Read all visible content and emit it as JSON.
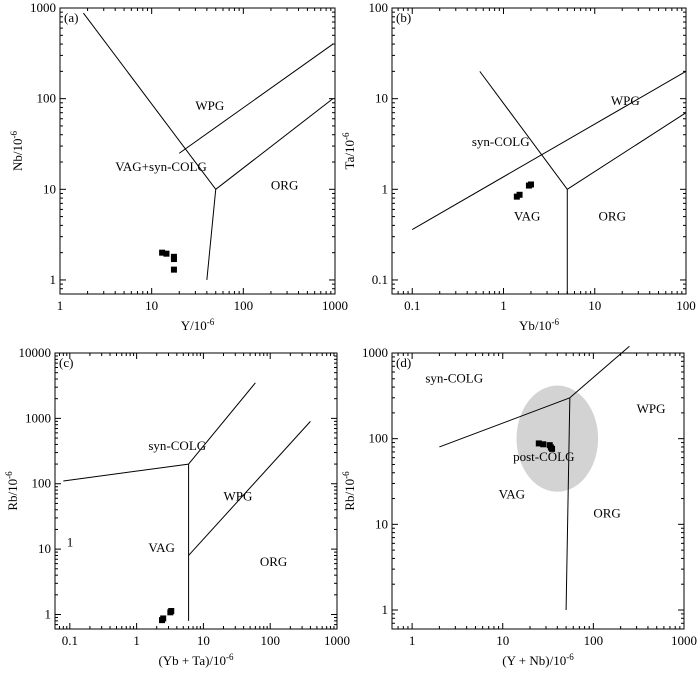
{
  "chart_data": [
    {
      "type": "scatter",
      "panel_label": "(a)",
      "scale": "log-log",
      "xlabel": "Y/10",
      "xlabel_exp": "-6",
      "ylabel": "Nb/10",
      "ylabel_exp": "-6",
      "xlim": [
        1,
        1000
      ],
      "ylim": [
        0.7,
        1000
      ],
      "xticks": [
        {
          "v": 1,
          "t": "1"
        },
        {
          "v": 10,
          "t": "10"
        },
        {
          "v": 100,
          "t": "100"
        },
        {
          "v": 1000,
          "t": "1000"
        }
      ],
      "yticks": [
        {
          "v": 1,
          "t": "1"
        },
        {
          "v": 10,
          "t": "10"
        },
        {
          "v": 100,
          "t": "100"
        },
        {
          "v": 1000,
          "t": "1000"
        }
      ],
      "field_labels": [
        {
          "text": "WPG",
          "x": 30,
          "y": 75
        },
        {
          "text": "VAG+syn-COLG",
          "x": 4,
          "y": 16
        },
        {
          "text": "ORG",
          "x": 200,
          "y": 10
        }
      ],
      "boundaries": [
        [
          [
            1.8,
            880
          ],
          [
            50,
            10
          ]
        ],
        [
          [
            50,
            10
          ],
          [
            40,
            1
          ]
        ],
        [
          [
            20,
            25
          ],
          [
            950,
            400
          ]
        ],
        [
          [
            50,
            10
          ],
          [
            950,
            100
          ]
        ]
      ],
      "points": [
        [
          13,
          2.0
        ],
        [
          14.5,
          1.95
        ],
        [
          17.5,
          1.8
        ],
        [
          17.5,
          1.7
        ],
        [
          17.5,
          1.3
        ]
      ]
    },
    {
      "type": "scatter",
      "panel_label": "(b)",
      "scale": "log-log",
      "xlabel": "Yb/10",
      "xlabel_exp": "-6",
      "ylabel": "Ta/10",
      "ylabel_exp": "-6",
      "xlim": [
        0.06,
        100
      ],
      "ylim": [
        0.07,
        100
      ],
      "xticks": [
        {
          "v": 0.1,
          "t": "0.1"
        },
        {
          "v": 1,
          "t": "1"
        },
        {
          "v": 10,
          "t": "10"
        },
        {
          "v": 100,
          "t": "100"
        }
      ],
      "yticks": [
        {
          "v": 0.1,
          "t": "0.1"
        },
        {
          "v": 1,
          "t": "1"
        },
        {
          "v": 10,
          "t": "10"
        },
        {
          "v": 100,
          "t": "100"
        }
      ],
      "field_labels": [
        {
          "text": "WPG",
          "x": 15,
          "y": 8.5
        },
        {
          "text": "syn-COLG",
          "x": 0.45,
          "y": 3.0
        },
        {
          "text": "VAG",
          "x": 1.3,
          "y": 0.45
        },
        {
          "text": "ORG",
          "x": 11,
          "y": 0.45
        }
      ],
      "boundaries": [
        [
          [
            0.1,
            0.36
          ],
          [
            100,
            20
          ]
        ],
        [
          [
            0.55,
            20
          ],
          [
            5,
            1
          ]
        ],
        [
          [
            5,
            1
          ],
          [
            100,
            7
          ]
        ],
        [
          [
            5,
            1
          ],
          [
            5,
            0.07
          ]
        ]
      ],
      "points": [
        [
          1.4,
          0.83
        ],
        [
          1.5,
          0.87
        ],
        [
          1.9,
          1.1
        ],
        [
          2.0,
          1.13
        ]
      ]
    },
    {
      "type": "scatter",
      "panel_label": "(c)",
      "scale": "log-log",
      "xlabel": "(Yb + Ta)/10",
      "xlabel_exp": "-6",
      "ylabel": "Rb/10",
      "ylabel_exp": "-6",
      "xlim": [
        0.06,
        1000
      ],
      "ylim": [
        0.6,
        10000
      ],
      "xticks": [
        {
          "v": 0.1,
          "t": "0.1"
        },
        {
          "v": 1,
          "t": "1"
        },
        {
          "v": 10,
          "t": "10"
        },
        {
          "v": 100,
          "t": "100"
        },
        {
          "v": 1000,
          "t": "1000"
        }
      ],
      "yticks": [
        {
          "v": 1,
          "t": "1"
        },
        {
          "v": 10,
          "t": "10"
        },
        {
          "v": 100,
          "t": "100"
        },
        {
          "v": 1000,
          "t": "1000"
        },
        {
          "v": 10000,
          "t": "10000"
        }
      ],
      "field_labels": [
        {
          "text": "syn-COLG",
          "x": 1.5,
          "y": 330
        },
        {
          "text": "WPG",
          "x": 20,
          "y": 55
        },
        {
          "text": "VAG",
          "x": 1.5,
          "y": 9
        },
        {
          "text": "ORG",
          "x": 70,
          "y": 5.5
        },
        {
          "text": "1",
          "x": 0.09,
          "y": 11
        }
      ],
      "boundaries": [
        [
          [
            0.08,
            110
          ],
          [
            6,
            200
          ]
        ],
        [
          [
            6,
            200
          ],
          [
            60,
            3500
          ]
        ],
        [
          [
            6,
            200
          ],
          [
            6,
            0.8
          ]
        ],
        [
          [
            6,
            8
          ],
          [
            400,
            900
          ]
        ]
      ],
      "points": [
        [
          2.4,
          0.82
        ],
        [
          2.5,
          0.87
        ],
        [
          3.2,
          1.08
        ],
        [
          3.3,
          1.13
        ]
      ]
    },
    {
      "type": "scatter",
      "panel_label": "(d)",
      "scale": "log-log",
      "xlabel": "(Y + Nb)/10",
      "xlabel_exp": "-6",
      "ylabel": "Rb/10",
      "ylabel_exp": "-6",
      "xlim": [
        0.6,
        1000
      ],
      "ylim": [
        0.6,
        1000
      ],
      "xticks": [
        {
          "v": 1,
          "t": "1"
        },
        {
          "v": 10,
          "t": "10"
        },
        {
          "v": 100,
          "t": "100"
        },
        {
          "v": 1000,
          "t": "1000"
        }
      ],
      "yticks": [
        {
          "v": 1,
          "t": "1"
        },
        {
          "v": 10,
          "t": "10"
        },
        {
          "v": 100,
          "t": "100"
        },
        {
          "v": 1000,
          "t": "1000"
        }
      ],
      "field_labels": [
        {
          "text": "syn-COLG",
          "x": 1.4,
          "y": 450
        },
        {
          "text": "WPG",
          "x": 300,
          "y": 200
        },
        {
          "text": "post-COLG",
          "x": 13,
          "y": 55
        },
        {
          "text": "VAG",
          "x": 9,
          "y": 20
        },
        {
          "text": "ORG",
          "x": 100,
          "y": 12
        }
      ],
      "boundaries": [
        [
          [
            2,
            80
          ],
          [
            55,
            300
          ]
        ],
        [
          [
            55,
            300
          ],
          [
            250,
            1200
          ]
        ],
        [
          [
            55,
            300
          ],
          [
            50,
            1
          ]
        ]
      ],
      "shaded_field": {
        "cx": 40,
        "cy": 100,
        "rx_decades": 0.45,
        "ry_decades": 0.62,
        "color": "#d3d3d3"
      },
      "points": [
        [
          25,
          88
        ],
        [
          28,
          86
        ],
        [
          33,
          84
        ],
        [
          34,
          79
        ],
        [
          35,
          76
        ]
      ]
    }
  ]
}
